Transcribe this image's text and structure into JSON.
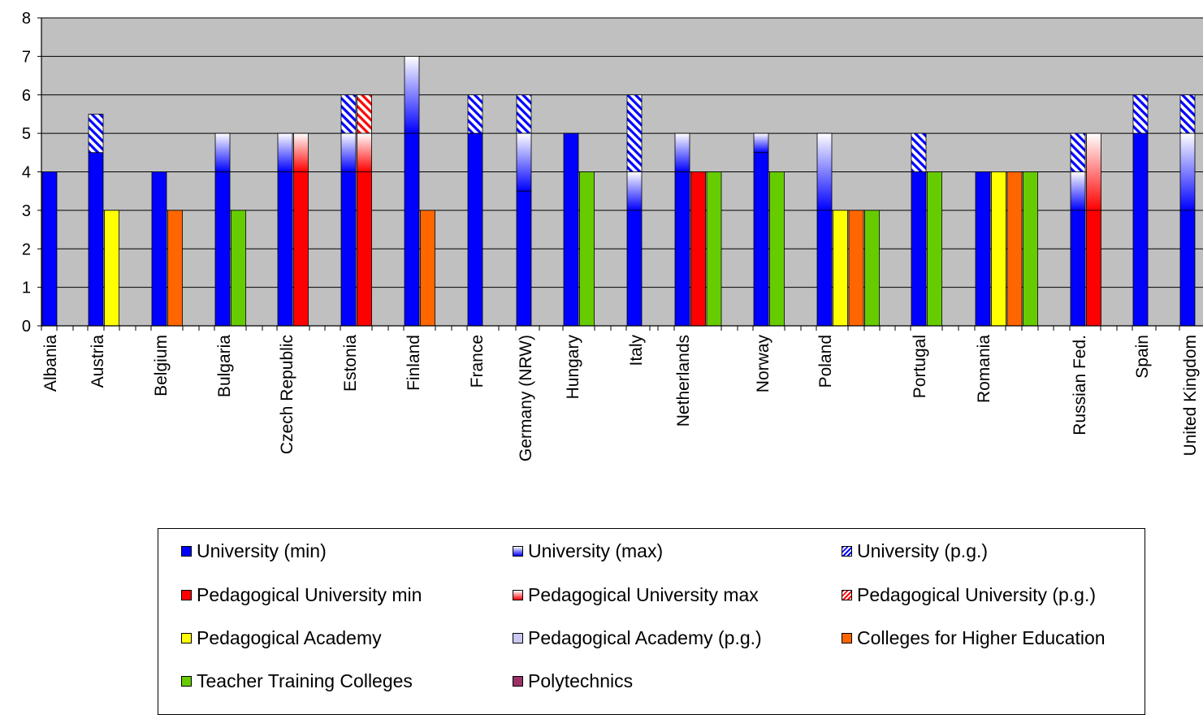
{
  "chart_data": {
    "type": "bar",
    "title": "",
    "xlabel": "",
    "ylabel": "",
    "ylim": [
      0,
      8
    ],
    "yticks": [
      "0",
      "1",
      "2",
      "3",
      "4",
      "5",
      "6",
      "7",
      "8"
    ],
    "grid": true,
    "legend_position": "bottom",
    "categories": [
      "Albania",
      "Austria",
      "Belgium",
      "Bulgaria",
      "Czech Republic",
      "Estonia",
      "Finland",
      "France",
      "Germany (NRW)",
      "Hungary",
      "Italy",
      "Netherlands",
      "Norway",
      "Poland",
      "Portugal",
      "Romania",
      "Russian Fed.",
      "Spain",
      "United Kingdom"
    ],
    "series": [
      {
        "name": "University (min)",
        "color": "#0000FF",
        "pattern": "solid"
      },
      {
        "name": "University (max)",
        "color": "#0000FF",
        "pattern": "gradient"
      },
      {
        "name": "University (p.g.)",
        "color": "#0000FF",
        "pattern": "hatch"
      },
      {
        "name": "Pedagogical University min",
        "color": "#FF0000",
        "pattern": "solid"
      },
      {
        "name": "Pedagogical University max",
        "color": "#FF0000",
        "pattern": "gradient"
      },
      {
        "name": "Pedagogical University (p.g.)",
        "color": "#FF0000",
        "pattern": "hatch"
      },
      {
        "name": "Pedagogical Academy",
        "color": "#FFFF00",
        "pattern": "solid"
      },
      {
        "name": "Pedagogical Academy (p.g.)",
        "color": "#C8C8F0",
        "pattern": "solid"
      },
      {
        "name": "Colleges for Higher Education",
        "color": "#FF6600",
        "pattern": "solid"
      },
      {
        "name": "Teacher Training Colleges",
        "color": "#66CC00",
        "pattern": "solid"
      },
      {
        "name": "Polytechnics",
        "color": "#993366",
        "pattern": "solid"
      }
    ],
    "bars": [
      {
        "country": "Albania",
        "type": "University",
        "min": 4,
        "max": 4,
        "pg": 4
      },
      {
        "country": "Austria",
        "type": "University",
        "min": 4.5,
        "max": 4.5,
        "pg": 5.5
      },
      {
        "country": "Austria",
        "type": "Pedagogical Academy",
        "value": 3
      },
      {
        "country": "Belgium",
        "type": "University",
        "min": 4,
        "max": 4,
        "pg": 4
      },
      {
        "country": "Belgium",
        "type": "Colleges for Higher Education",
        "value": 3
      },
      {
        "country": "Bulgaria",
        "type": "University",
        "min": 4,
        "max": 5,
        "pg": 5
      },
      {
        "country": "Bulgaria",
        "type": "Teacher Training Colleges",
        "value": 3
      },
      {
        "country": "Czech Republic",
        "type": "University",
        "min": 4,
        "max": 5,
        "pg": 5
      },
      {
        "country": "Czech Republic",
        "type": "Pedagogical University",
        "min": 4,
        "max": 5,
        "pg": 5
      },
      {
        "country": "Estonia",
        "type": "University",
        "min": 4,
        "max": 5,
        "pg": 6
      },
      {
        "country": "Estonia",
        "type": "Pedagogical University",
        "min": 4,
        "max": 5,
        "pg": 6
      },
      {
        "country": "Finland",
        "type": "University",
        "min": 5,
        "max": 7,
        "pg": 7
      },
      {
        "country": "Finland",
        "type": "Colleges for Higher Education",
        "value": 3
      },
      {
        "country": "France",
        "type": "University",
        "min": 5,
        "max": 5,
        "pg": 6
      },
      {
        "country": "Germany (NRW)",
        "type": "University",
        "min": 3.5,
        "max": 5,
        "pg": 6
      },
      {
        "country": "Hungary",
        "type": "University",
        "min": 5,
        "max": 5,
        "pg": 5
      },
      {
        "country": "Hungary",
        "type": "Teacher Training Colleges",
        "value": 4
      },
      {
        "country": "Italy",
        "type": "University",
        "min": 3,
        "max": 4,
        "pg": 6
      },
      {
        "country": "Netherlands",
        "type": "University",
        "min": 4,
        "max": 5,
        "pg": 5
      },
      {
        "country": "Netherlands",
        "type": "Pedagogical University",
        "min": 4,
        "max": 4,
        "pg": 4
      },
      {
        "country": "Netherlands",
        "type": "Teacher Training Colleges",
        "value": 4
      },
      {
        "country": "Norway",
        "type": "University",
        "min": 4.5,
        "max": 5,
        "pg": 5
      },
      {
        "country": "Norway",
        "type": "Teacher Training Colleges",
        "value": 4
      },
      {
        "country": "Poland",
        "type": "University",
        "min": 3,
        "max": 5,
        "pg": 5
      },
      {
        "country": "Poland",
        "type": "Pedagogical Academy",
        "value": 3
      },
      {
        "country": "Poland",
        "type": "Colleges for Higher Education",
        "value": 3
      },
      {
        "country": "Poland",
        "type": "Teacher Training Colleges",
        "value": 3
      },
      {
        "country": "Portugal",
        "type": "University",
        "min": 4,
        "max": 4,
        "pg": 5
      },
      {
        "country": "Portugal",
        "type": "Teacher Training Colleges",
        "value": 4
      },
      {
        "country": "Romania",
        "type": "University",
        "min": 4,
        "max": 4,
        "pg": 4
      },
      {
        "country": "Romania",
        "type": "Pedagogical Academy",
        "value": 4
      },
      {
        "country": "Romania",
        "type": "Colleges for Higher Education",
        "value": 4
      },
      {
        "country": "Romania",
        "type": "Teacher Training Colleges",
        "value": 4
      },
      {
        "country": "Russian Fed.",
        "type": "University",
        "min": 3,
        "max": 4,
        "pg": 5
      },
      {
        "country": "Russian Fed.",
        "type": "Pedagogical University",
        "min": 3,
        "max": 5,
        "pg": 5
      },
      {
        "country": "Spain",
        "type": "University",
        "min": 5,
        "max": 5,
        "pg": 6
      },
      {
        "country": "United Kingdom",
        "type": "University",
        "min": 3,
        "max": 5,
        "pg": 6
      }
    ]
  }
}
